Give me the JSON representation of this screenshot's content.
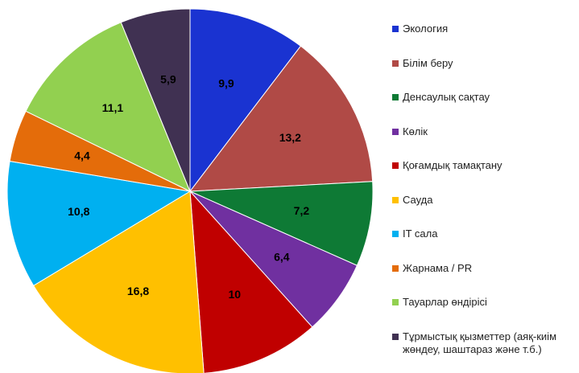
{
  "chart_data": {
    "type": "pie",
    "categories": [
      "Экология",
      "Білім беру",
      "Денсаулық сақтау",
      "Көлік",
      "Қоғамдық тамақтану",
      "Сауда",
      "IT сала",
      "Жарнама / PR",
      "Тауарлар өндірісі",
      "Тұрмыстық қызметтер (аяқ-киім жөндеу, шаштараз және т.б.)"
    ],
    "values": [
      9.9,
      13.2,
      7.2,
      6.4,
      10,
      16.8,
      10.8,
      4.4,
      11.1,
      5.9
    ],
    "value_labels": [
      "9,9",
      "13,2",
      "7,2",
      "6,4",
      "10",
      "16,8",
      "10,8",
      "4,4",
      "11,1",
      "5,9"
    ],
    "colors": [
      "#1a33d1",
      "#b04a46",
      "#0e7a35",
      "#7030a0",
      "#c00000",
      "#ffc000",
      "#00b0f0",
      "#e46c0a",
      "#92d050",
      "#403152"
    ],
    "legend": "right"
  }
}
